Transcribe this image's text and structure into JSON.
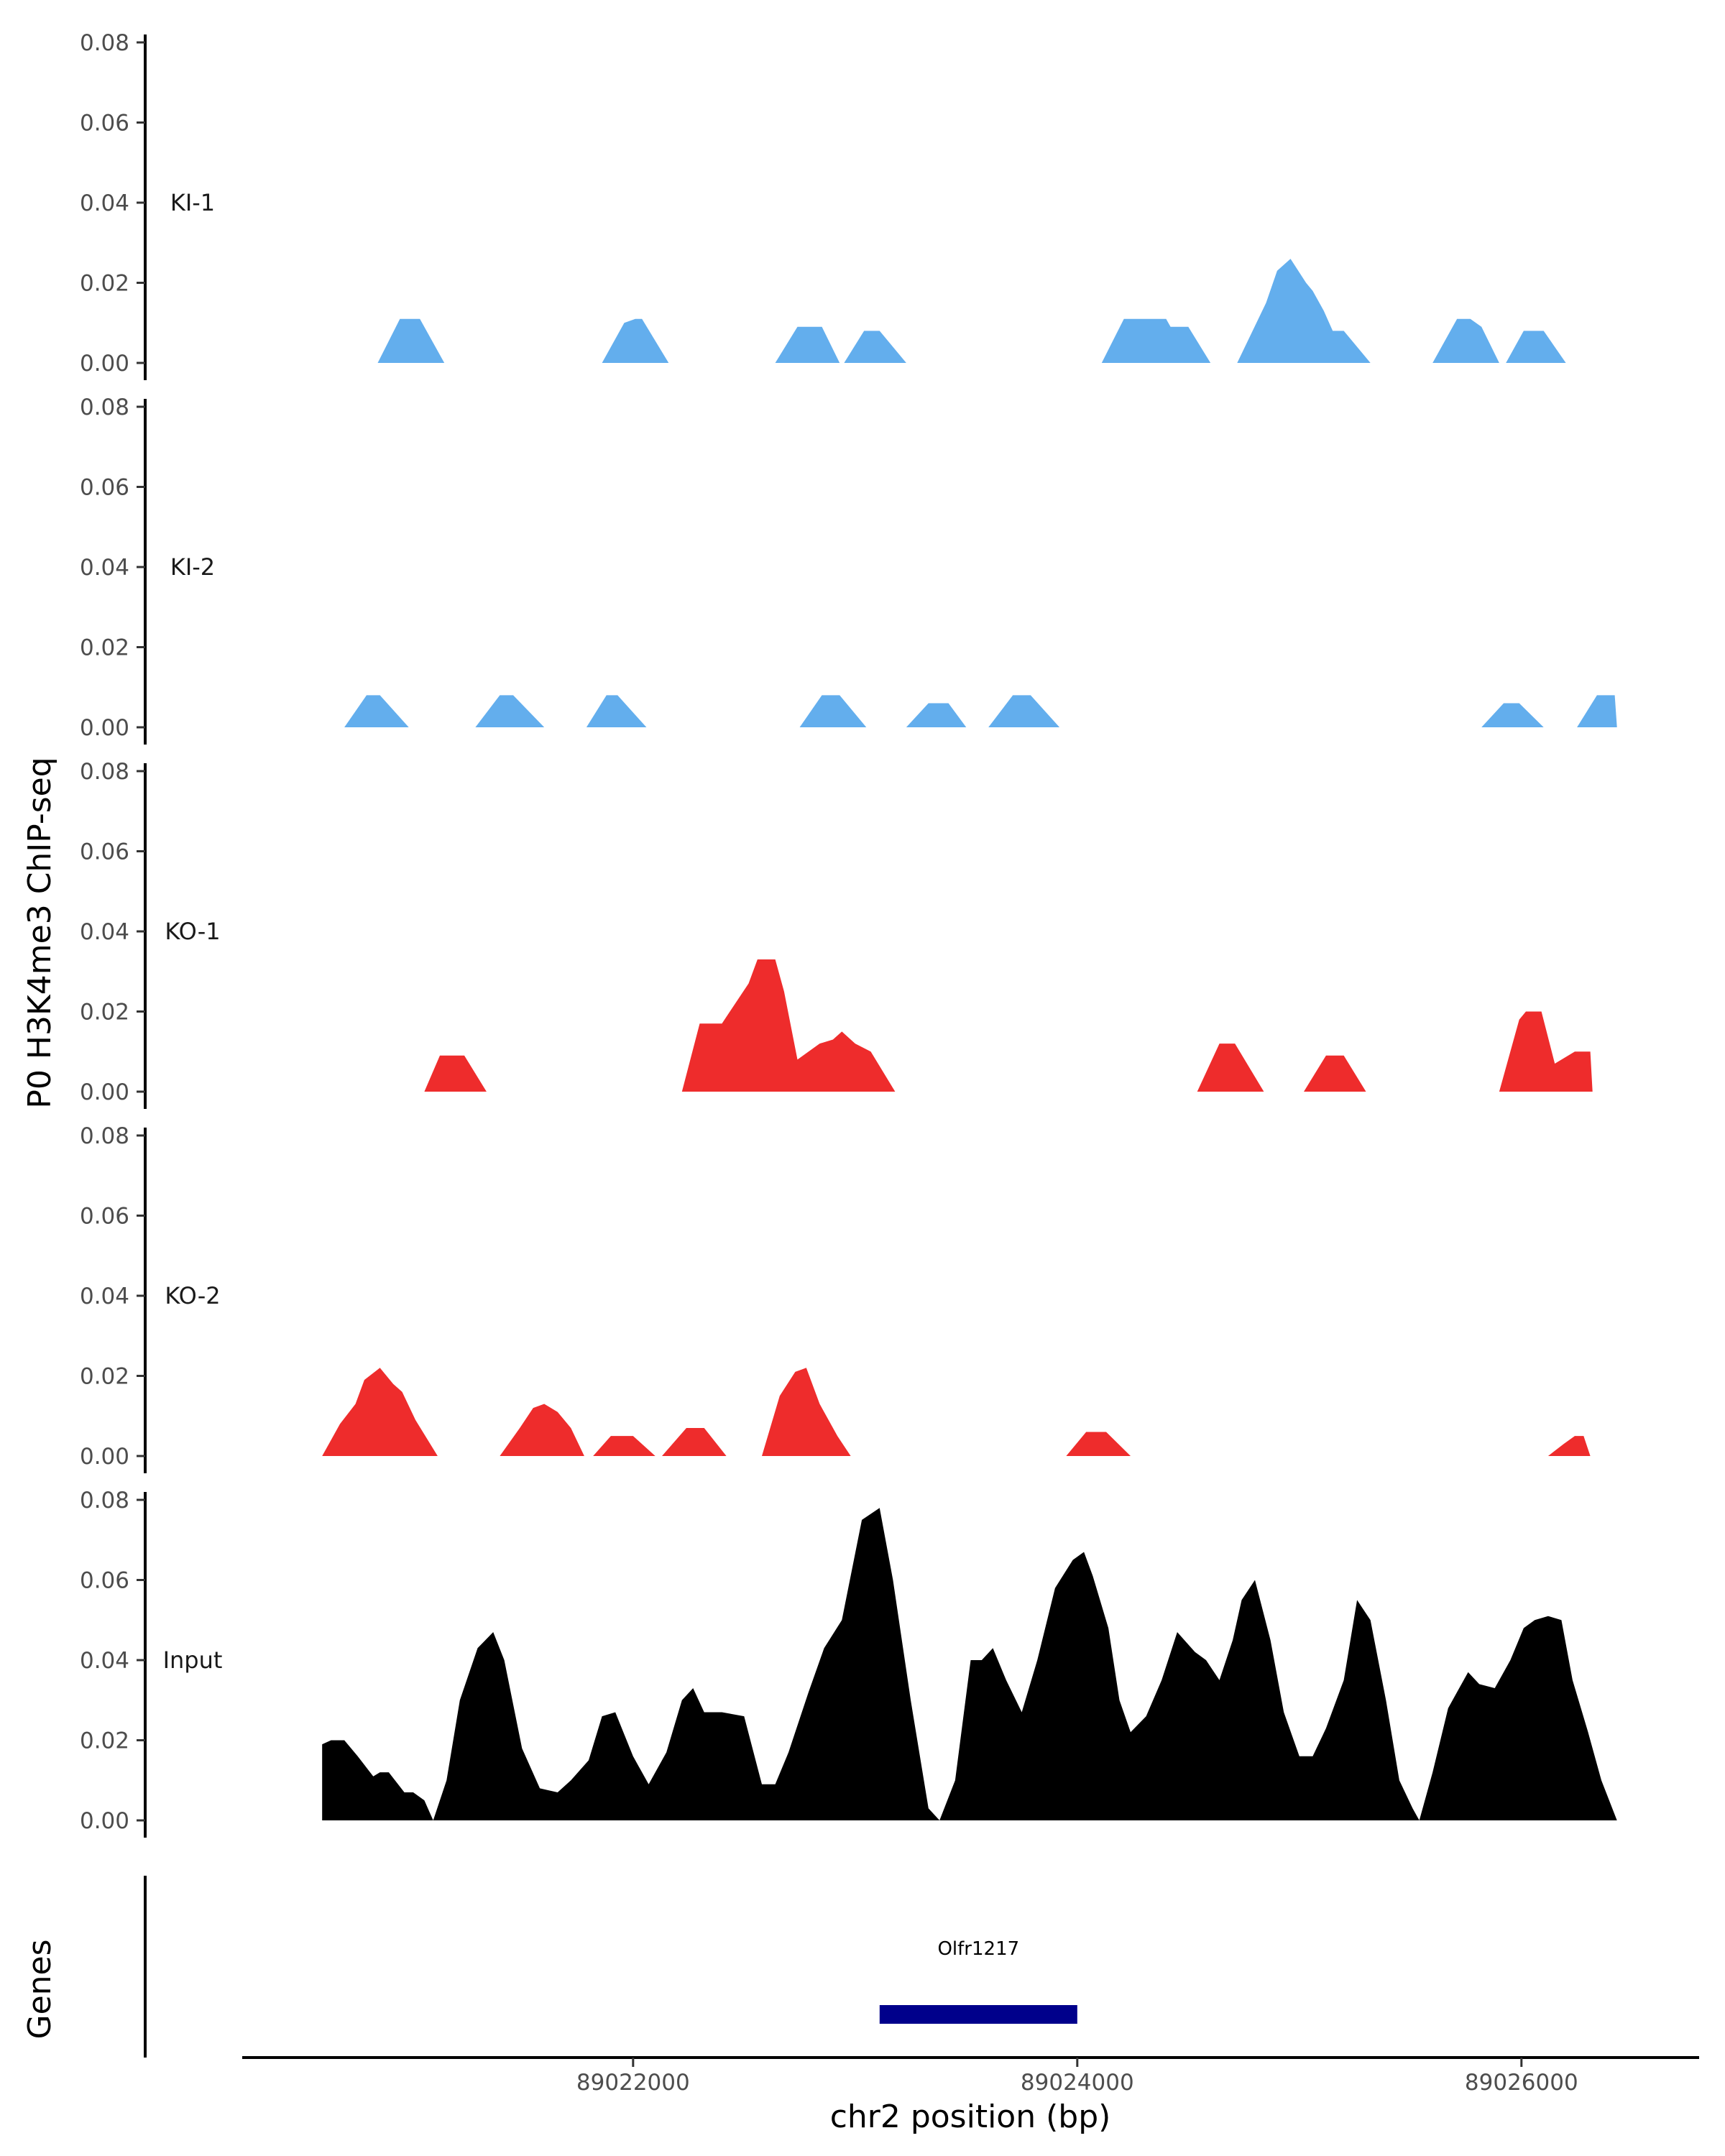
{
  "chart_data": {
    "type": "area",
    "ylabel": "P0 H3K4me3 ChIP-seq",
    "xlabel": "chr2 position (bp)",
    "ylim": [
      0,
      0.08
    ],
    "y_ticks": [
      "0.00",
      "0.02",
      "0.04",
      "0.06",
      "0.08"
    ],
    "xlim": [
      89020240,
      89026800
    ],
    "x_ticks": [
      {
        "value": 89022000,
        "label": "89022000"
      },
      {
        "value": 89024000,
        "label": "89024000"
      },
      {
        "value": 89026000,
        "label": "89026000"
      }
    ],
    "colors": {
      "KI": "#63aeed",
      "KO": "#ee2c2c",
      "Input": "#000000",
      "gene": "#00008b"
    },
    "tracks": [
      {
        "name": "KI-1",
        "color": "#63aeed",
        "peaks": [
          [
            [
              20850,
              0
            ],
            [
              20950,
              0.011
            ],
            [
              21040,
              0.011
            ],
            [
              21150,
              0
            ]
          ],
          [
            [
              21860,
              0
            ],
            [
              21960,
              0.01
            ],
            [
              22010,
              0.011
            ],
            [
              22040,
              0.011
            ],
            [
              22160,
              0
            ]
          ],
          [
            [
              22640,
              0
            ],
            [
              22740,
              0.009
            ],
            [
              22850,
              0.009
            ],
            [
              22930,
              0
            ]
          ],
          [
            [
              22950,
              0
            ],
            [
              23040,
              0.008
            ],
            [
              23110,
              0.008
            ],
            [
              23230,
              0
            ]
          ],
          [
            [
              24110,
              0
            ],
            [
              24210,
              0.011
            ],
            [
              24400,
              0.011
            ],
            [
              24420,
              0.009
            ],
            [
              24500,
              0.009
            ],
            [
              24600,
              0
            ]
          ],
          [
            [
              24720,
              0
            ],
            [
              24850,
              0.015
            ],
            [
              24900,
              0.023
            ],
            [
              24960,
              0.026
            ],
            [
              25030,
              0.02
            ],
            [
              25060,
              0.018
            ],
            [
              25110,
              0.013
            ],
            [
              25150,
              0.008
            ],
            [
              25200,
              0.008
            ],
            [
              25320,
              0
            ]
          ],
          [
            [
              25600,
              0
            ],
            [
              25710,
              0.011
            ],
            [
              25770,
              0.011
            ],
            [
              25820,
              0.009
            ],
            [
              25900,
              0
            ]
          ],
          [
            [
              25930,
              0
            ],
            [
              26010,
              0.008
            ],
            [
              26100,
              0.008
            ],
            [
              26200,
              0
            ]
          ]
        ]
      },
      {
        "name": "KI-2",
        "color": "#63aeed",
        "peaks": [
          [
            [
              20700,
              0
            ],
            [
              20800,
              0.008
            ],
            [
              20860,
              0.008
            ],
            [
              20990,
              0
            ]
          ],
          [
            [
              21290,
              0
            ],
            [
              21400,
              0.008
            ],
            [
              21460,
              0.008
            ],
            [
              21600,
              0
            ]
          ],
          [
            [
              21790,
              0
            ],
            [
              21880,
              0.008
            ],
            [
              21930,
              0.008
            ],
            [
              22060,
              0
            ]
          ],
          [
            [
              22750,
              0
            ],
            [
              22850,
              0.008
            ],
            [
              22930,
              0.008
            ],
            [
              23050,
              0
            ]
          ],
          [
            [
              23230,
              0
            ],
            [
              23330,
              0.006
            ],
            [
              23420,
              0.006
            ],
            [
              23500,
              0
            ]
          ],
          [
            [
              23600,
              0
            ],
            [
              23710,
              0.008
            ],
            [
              23790,
              0.008
            ],
            [
              23920,
              0
            ]
          ],
          [
            [
              25820,
              0
            ],
            [
              25920,
              0.006
            ],
            [
              25990,
              0.006
            ],
            [
              26100,
              0
            ]
          ],
          [
            [
              26250,
              0
            ],
            [
              26340,
              0.008
            ],
            [
              26420,
              0.008
            ],
            [
              26430,
              0
            ]
          ]
        ]
      },
      {
        "name": "KO-1",
        "color": "#ee2c2c",
        "peaks": [
          [
            [
              21060,
              0
            ],
            [
              21130,
              0.009
            ],
            [
              21240,
              0.009
            ],
            [
              21340,
              0
            ]
          ],
          [
            [
              22220,
              0
            ],
            [
              22300,
              0.017
            ],
            [
              22400,
              0.017
            ],
            [
              22520,
              0.027
            ],
            [
              22560,
              0.033
            ],
            [
              22640,
              0.033
            ],
            [
              22680,
              0.025
            ],
            [
              22740,
              0.008
            ],
            [
              22840,
              0.012
            ],
            [
              22900,
              0.013
            ],
            [
              22940,
              0.015
            ],
            [
              23000,
              0.012
            ],
            [
              23070,
              0.01
            ],
            [
              23180,
              0
            ]
          ],
          [
            [
              24540,
              0
            ],
            [
              24640,
              0.012
            ],
            [
              24710,
              0.012
            ],
            [
              24840,
              0
            ]
          ],
          [
            [
              25020,
              0
            ],
            [
              25120,
              0.009
            ],
            [
              25200,
              0.009
            ],
            [
              25300,
              0
            ]
          ],
          [
            [
              25900,
              0
            ],
            [
              25990,
              0.018
            ],
            [
              26020,
              0.02
            ],
            [
              26090,
              0.02
            ],
            [
              26150,
              0.007
            ],
            [
              26240,
              0.01
            ],
            [
              26310,
              0.01
            ],
            [
              26320,
              0
            ]
          ]
        ]
      },
      {
        "name": "KO-2",
        "color": "#ee2c2c",
        "peaks": [
          [
            [
              20600,
              0
            ],
            [
              20640,
              0.004
            ],
            [
              20680,
              0.008
            ],
            [
              20750,
              0.013
            ],
            [
              20790,
              0.019
            ],
            [
              20860,
              0.022
            ],
            [
              20920,
              0.018
            ],
            [
              20960,
              0.016
            ],
            [
              21020,
              0.009
            ],
            [
              21120,
              0
            ]
          ],
          [
            [
              21400,
              0
            ],
            [
              21490,
              0.007
            ],
            [
              21550,
              0.012
            ],
            [
              21600,
              0.013
            ],
            [
              21660,
              0.011
            ],
            [
              21720,
              0.007
            ],
            [
              21780,
              0
            ]
          ],
          [
            [
              21820,
              0
            ],
            [
              21900,
              0.005
            ],
            [
              22000,
              0.005
            ],
            [
              22100,
              0
            ]
          ],
          [
            [
              22130,
              0
            ],
            [
              22240,
              0.007
            ],
            [
              22320,
              0.007
            ],
            [
              22420,
              0
            ]
          ],
          [
            [
              22580,
              0
            ],
            [
              22660,
              0.015
            ],
            [
              22730,
              0.021
            ],
            [
              22780,
              0.022
            ],
            [
              22840,
              0.013
            ],
            [
              22920,
              0.005
            ],
            [
              22980,
              0
            ]
          ],
          [
            [
              23950,
              0
            ],
            [
              24040,
              0.006
            ],
            [
              24130,
              0.006
            ],
            [
              24240,
              0
            ]
          ],
          [
            [
              26120,
              0
            ],
            [
              26190,
              0.003
            ],
            [
              26240,
              0.005
            ],
            [
              26280,
              0.005
            ],
            [
              26310,
              0
            ]
          ]
        ]
      },
      {
        "name": "Input",
        "color": "#000000",
        "peaks": [
          [
            [
              20600,
              0
            ],
            [
              20600,
              0.019
            ],
            [
              20640,
              0.02
            ],
            [
              20700,
              0.02
            ],
            [
              20760,
              0.016
            ],
            [
              20830,
              0.011
            ],
            [
              20860,
              0.012
            ],
            [
              20900,
              0.012
            ],
            [
              20970,
              0.007
            ],
            [
              21010,
              0.007
            ],
            [
              21060,
              0.005
            ],
            [
              21100,
              0
            ],
            [
              21160,
              0.01
            ],
            [
              21220,
              0.03
            ],
            [
              21300,
              0.043
            ],
            [
              21370,
              0.047
            ],
            [
              21420,
              0.04
            ],
            [
              21500,
              0.018
            ],
            [
              21580,
              0.008
            ],
            [
              21660,
              0.007
            ],
            [
              21720,
              0.01
            ],
            [
              21800,
              0.015
            ],
            [
              21860,
              0.026
            ],
            [
              21920,
              0.027
            ],
            [
              22000,
              0.016
            ],
            [
              22070,
              0.009
            ],
            [
              22150,
              0.017
            ],
            [
              22220,
              0.03
            ],
            [
              22270,
              0.033
            ],
            [
              22320,
              0.027
            ],
            [
              22400,
              0.027
            ],
            [
              22500,
              0.026
            ],
            [
              22580,
              0.009
            ],
            [
              22640,
              0.009
            ],
            [
              22700,
              0.017
            ],
            [
              22790,
              0.032
            ],
            [
              22860,
              0.043
            ],
            [
              22940,
              0.05
            ],
            [
              23030,
              0.075
            ],
            [
              23110,
              0.078
            ],
            [
              23170,
              0.06
            ],
            [
              23250,
              0.03
            ],
            [
              23330,
              0.003
            ],
            [
              23380,
              0
            ]
          ],
          [
            [
              23380,
              0
            ],
            [
              23450,
              0.01
            ],
            [
              23520,
              0.04
            ],
            [
              23570,
              0.04
            ],
            [
              23620,
              0.043
            ],
            [
              23680,
              0.035
            ],
            [
              23750,
              0.027
            ],
            [
              23820,
              0.04
            ],
            [
              23900,
              0.058
            ],
            [
              23980,
              0.065
            ],
            [
              24030,
              0.067
            ],
            [
              24070,
              0.061
            ],
            [
              24140,
              0.048
            ],
            [
              24190,
              0.03
            ],
            [
              24240,
              0.022
            ],
            [
              24310,
              0.026
            ],
            [
              24380,
              0.035
            ],
            [
              24450,
              0.047
            ],
            [
              24530,
              0.042
            ],
            [
              24580,
              0.04
            ],
            [
              24640,
              0.035
            ],
            [
              24700,
              0.045
            ],
            [
              24740,
              0.055
            ],
            [
              24800,
              0.06
            ],
            [
              24870,
              0.045
            ],
            [
              24930,
              0.027
            ],
            [
              25000,
              0.016
            ],
            [
              25060,
              0.016
            ],
            [
              25120,
              0.023
            ],
            [
              25200,
              0.035
            ],
            [
              25260,
              0.055
            ],
            [
              25320,
              0.05
            ],
            [
              25390,
              0.03
            ],
            [
              25450,
              0.01
            ],
            [
              25510,
              0.003
            ],
            [
              25540,
              0
            ]
          ],
          [
            [
              25540,
              0
            ],
            [
              25600,
              0.012
            ],
            [
              25670,
              0.028
            ],
            [
              25760,
              0.037
            ],
            [
              25810,
              0.034
            ],
            [
              25880,
              0.033
            ],
            [
              25950,
              0.04
            ],
            [
              26010,
              0.048
            ],
            [
              26060,
              0.05
            ],
            [
              26120,
              0.051
            ],
            [
              26180,
              0.05
            ],
            [
              26230,
              0.035
            ],
            [
              26300,
              0.022
            ],
            [
              26360,
              0.01
            ],
            [
              26430,
              0
            ]
          ]
        ]
      }
    ],
    "genes": {
      "label": "Genes",
      "items": [
        {
          "name": "Olfr1217",
          "start": 89023110,
          "end": 89024000
        }
      ]
    }
  }
}
